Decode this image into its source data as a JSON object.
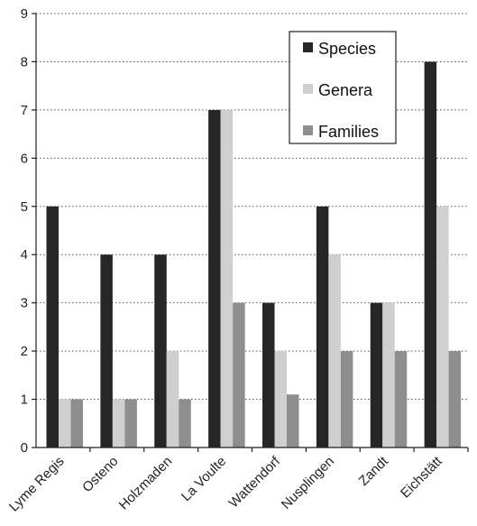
{
  "chart_data": {
    "type": "bar",
    "categories": [
      "Lyme Regis",
      "Osteno",
      "Holzmaden",
      "La Voulte",
      "Wattendorf",
      "Nusplingen",
      "Zandt",
      "Eichstätt"
    ],
    "series": [
      {
        "name": "Species",
        "color": "#262626",
        "values": [
          5,
          4,
          4,
          7,
          3,
          5,
          3,
          8
        ]
      },
      {
        "name": "Genera",
        "color": "#cfcfcf",
        "values": [
          1,
          1,
          2,
          7,
          2,
          4,
          3,
          5
        ]
      },
      {
        "name": "Families",
        "color": "#8e8e8e",
        "values": [
          1,
          1,
          1,
          3,
          1.1,
          2,
          2,
          2
        ]
      }
    ],
    "ylim": [
      0,
      9
    ],
    "yticks": [
      "0",
      "1",
      "2",
      "3",
      "4",
      "5",
      "6",
      "7",
      "8",
      "9"
    ],
    "grid": "horizontal-dotted",
    "legend_position": "top-right",
    "title": "",
    "xlabel": "",
    "ylabel": ""
  }
}
